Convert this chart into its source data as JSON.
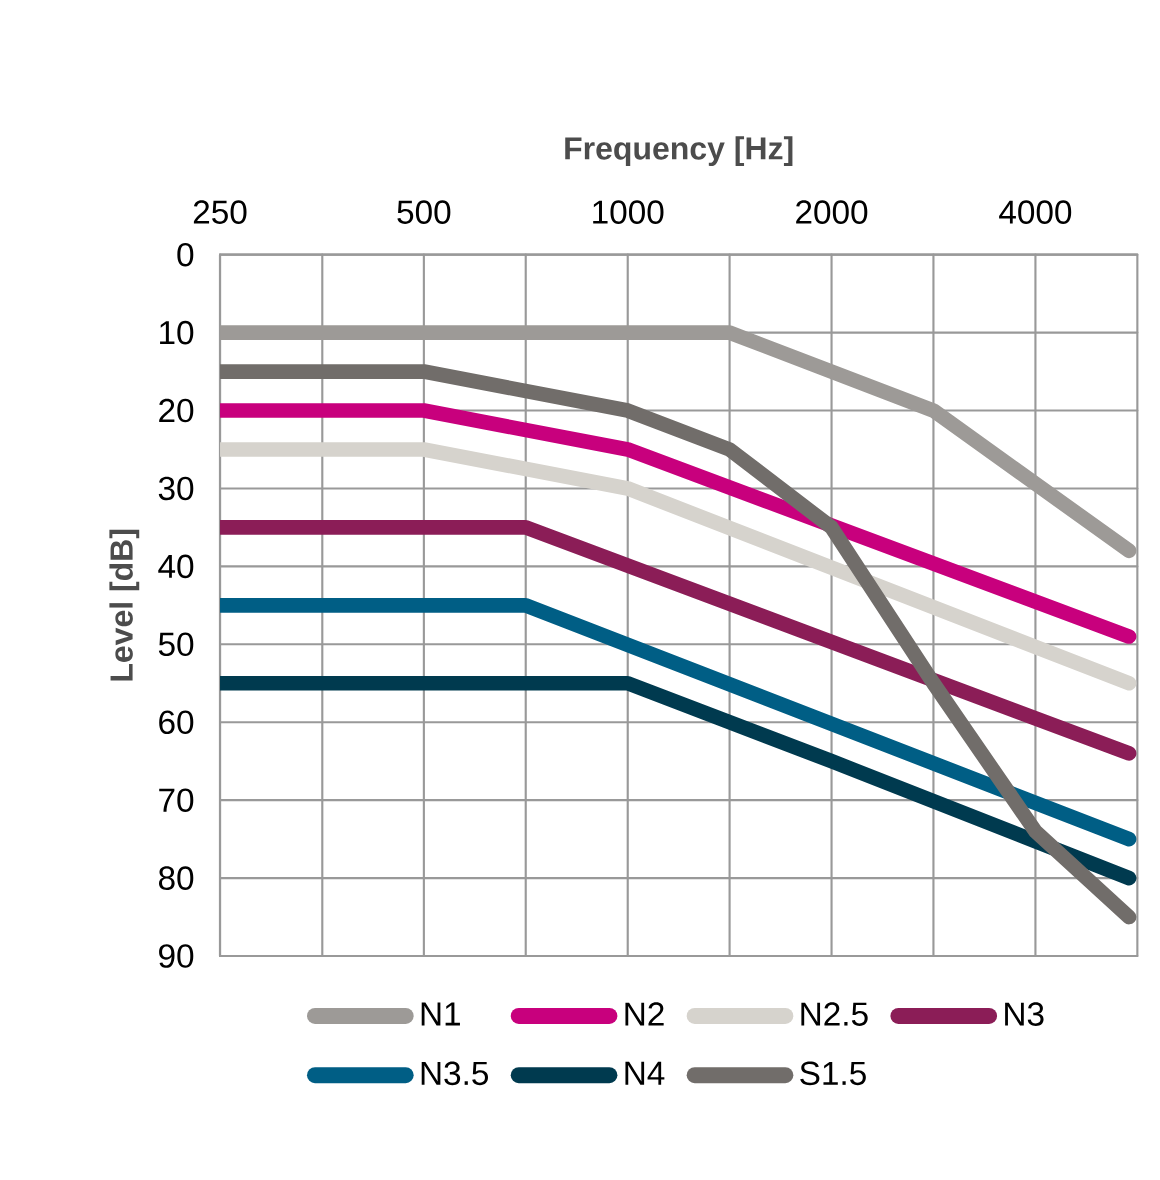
{
  "chart_data": {
    "type": "line",
    "xlabel": "Frequency [Hz]",
    "ylabel": "Level [dB]",
    "xlim": [
      250,
      5657
    ],
    "ylim": [
      90,
      0
    ],
    "xticks": [
      250,
      {
        "value": 354,
        "label": null
      },
      500,
      {
        "value": 707,
        "label": null
      },
      1000,
      {
        "value": 1414,
        "label": null
      },
      2000,
      {
        "value": 2828,
        "label": null
      },
      4000
    ],
    "yticks": [
      0,
      10,
      20,
      30,
      40,
      50,
      60,
      70,
      80,
      90
    ],
    "log": "x",
    "grid": true,
    "legend": "bottom",
    "marker": "none",
    "line_style": "solid",
    "series": [
      {
        "name": "N1",
        "color": "#9d9a97",
        "x": [
          250,
          1414,
          2828,
          5500
        ],
        "values": [
          10,
          10,
          20,
          38
        ]
      },
      {
        "name": "N2",
        "color": "#c8007d",
        "x": [
          250,
          500,
          1000,
          5500
        ],
        "values": [
          20,
          20,
          25,
          49
        ]
      },
      {
        "name": "N2.5",
        "color": "#d6d3cd",
        "x": [
          250,
          500,
          1000,
          5500
        ],
        "values": [
          25,
          25,
          30,
          55
        ]
      },
      {
        "name": "N3",
        "color": "#8b1d57",
        "x": [
          250,
          707,
          5500
        ],
        "values": [
          35,
          35,
          64
        ]
      },
      {
        "name": "N3.5",
        "color": "#005e85",
        "x": [
          250,
          707,
          5500
        ],
        "values": [
          45,
          45,
          75
        ]
      },
      {
        "name": "N4",
        "color": "#003a4f",
        "x": [
          250,
          1000,
          2000,
          5500
        ],
        "values": [
          55,
          55,
          65,
          80
        ]
      },
      {
        "name": "S1.5",
        "color": "#716d6a",
        "x": [
          250,
          500,
          1000,
          1414,
          2000,
          2828,
          4000,
          5500
        ],
        "values": [
          15,
          15,
          20,
          25,
          35,
          55,
          74,
          85
        ]
      }
    ]
  }
}
